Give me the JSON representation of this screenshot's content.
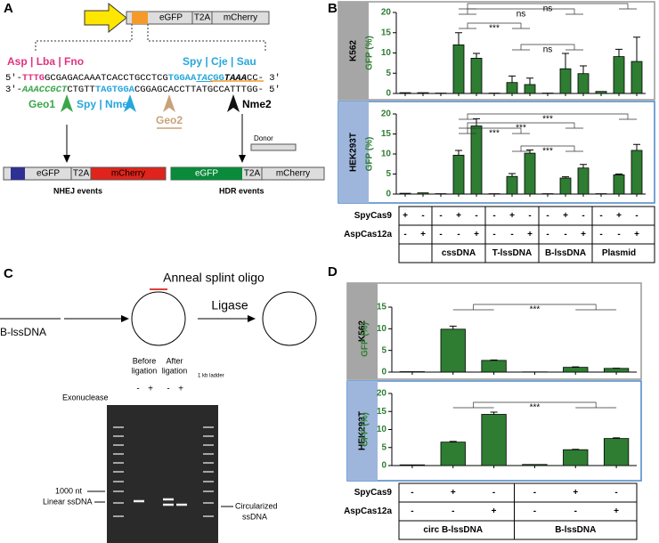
{
  "panel_labels": [
    "A",
    "B",
    "C",
    "D"
  ],
  "panel_a": {
    "construct": [
      "eGFP",
      "T2A",
      "mCherry"
    ],
    "enzymes_left": "Asp | Lba | Fno",
    "enzymes_right": "Spy | Cje | Sau",
    "top_strand": [
      "5′-",
      "TTTG",
      "GCGAGACAAATCACCTGCC",
      "TCG",
      "TGGAA",
      "TAC",
      "GG",
      "TAAA",
      "CC",
      "- 3′"
    ],
    "bottom_strand": [
      "3′-",
      "AAACCGCT",
      "CTGTT",
      "TAGTGGA",
      "CGGAGCACCTTATGCCATTTGG",
      "- 5′"
    ],
    "geo1": "Geo1",
    "spy_nme1": "Spy | Nme1",
    "geo2": "Geo2",
    "nme2": "Nme2",
    "donor": "Donor",
    "nhej_construct": [
      "eGFP",
      "T2A",
      "mCherry"
    ],
    "hdr_construct": [
      "eGFP",
      "T2A",
      "mCherry"
    ],
    "nhej": "NHEJ events",
    "hdr": "HDR events"
  },
  "panel_c": {
    "anneal": "Anneal splint oligo",
    "substrate": "B-lssDNA",
    "ligase": "Ligase",
    "before": [
      "Before",
      "ligation"
    ],
    "after": [
      "After",
      "ligation"
    ],
    "exonuclease": "Exonuclease",
    "lanes": [
      "-",
      "+",
      "-",
      "+"
    ],
    "ladder": "1 kb ladder",
    "marker": "1000 nt",
    "linear": "Linear ssDNA",
    "circular": [
      "Circularized",
      "ssDNA"
    ]
  },
  "chart_data": [
    {
      "type": "bar",
      "title": "K562",
      "ylabel": "GFP (%)",
      "color": "#2e7d32",
      "values": [
        0.2,
        0.2,
        0.1,
        12,
        8.7,
        0.1,
        2.7,
        2.2,
        0.1,
        6.1,
        4.9,
        0.5,
        9.1,
        7.9
      ],
      "errors": [
        null,
        null,
        null,
        3,
        1.2,
        null,
        1.6,
        1.6,
        null,
        3.8,
        1.9,
        null,
        1.8,
        6
      ],
      "ylim": [
        0,
        20
      ],
      "yticks": [
        0,
        5,
        10,
        15,
        20
      ],
      "annotations": [
        "ns",
        "ns",
        "***",
        "ns"
      ]
    },
    {
      "type": "bar",
      "title": "HEK293T",
      "ylabel": "GFP (%)",
      "color": "#2e7d32",
      "values": [
        0.2,
        0.3,
        0.1,
        9.7,
        17,
        0.1,
        4.4,
        10.2,
        0.1,
        4,
        6.5,
        0.1,
        4.8,
        10.9
      ],
      "errors": [
        null,
        null,
        null,
        1.2,
        1.8,
        null,
        0.7,
        0.8,
        null,
        0.3,
        0.9,
        null,
        0.2,
        1.5
      ],
      "ylim": [
        0,
        20
      ],
      "yticks": [
        0,
        5,
        10,
        15,
        20
      ],
      "annotations": [
        "***",
        "***",
        "***",
        "***"
      ]
    },
    {
      "type": "bar",
      "title": "K562",
      "ylabel": "GFP (%)",
      "color": "#2e7d32",
      "values": [
        0.1,
        9.9,
        2.7,
        0.05,
        1.1,
        0.85
      ],
      "errors": [
        null,
        0.7,
        0.1,
        null,
        0.1,
        0.05
      ],
      "ylim": [
        0,
        15
      ],
      "yticks": [
        0,
        5,
        10,
        15
      ],
      "annotations": [
        "***"
      ]
    },
    {
      "type": "bar",
      "title": "HEK293T",
      "ylabel": "GFP (%)",
      "color": "#2e7d32",
      "values": [
        0.2,
        6.5,
        14.2,
        0.3,
        4.4,
        7.5
      ],
      "errors": [
        null,
        0.2,
        0.6,
        null,
        0.1,
        0.2
      ],
      "ylim": [
        0,
        20
      ],
      "yticks": [
        0,
        5,
        10,
        15,
        20
      ],
      "annotations": [
        "***"
      ]
    }
  ],
  "tables": [
    {
      "rows": [
        {
          "name": "SpyCas9",
          "cells": [
            "+",
            "-",
            "-",
            "+",
            "-",
            "-",
            "+",
            "-",
            "-",
            "+",
            "-",
            "-",
            "+",
            "-"
          ]
        },
        {
          "name": "AspCas12a",
          "cells": [
            "-",
            "+",
            "-",
            "-",
            "+",
            "-",
            "-",
            "+",
            "-",
            "-",
            "+",
            "-",
            "-",
            "+"
          ]
        }
      ],
      "groups": [
        "cssDNA",
        "T-lssDNA",
        "B-lssDNA",
        "Plasmid"
      ]
    },
    {
      "rows": [
        {
          "name": "SpyCas9",
          "cells": [
            "-",
            "+",
            "-",
            "-",
            "+",
            "-"
          ]
        },
        {
          "name": "AspCas12a",
          "cells": [
            "-",
            "-",
            "+",
            "-",
            "-",
            "+"
          ]
        }
      ],
      "groups": [
        "circ B-lssDNA",
        "B-lssDNA"
      ]
    }
  ]
}
